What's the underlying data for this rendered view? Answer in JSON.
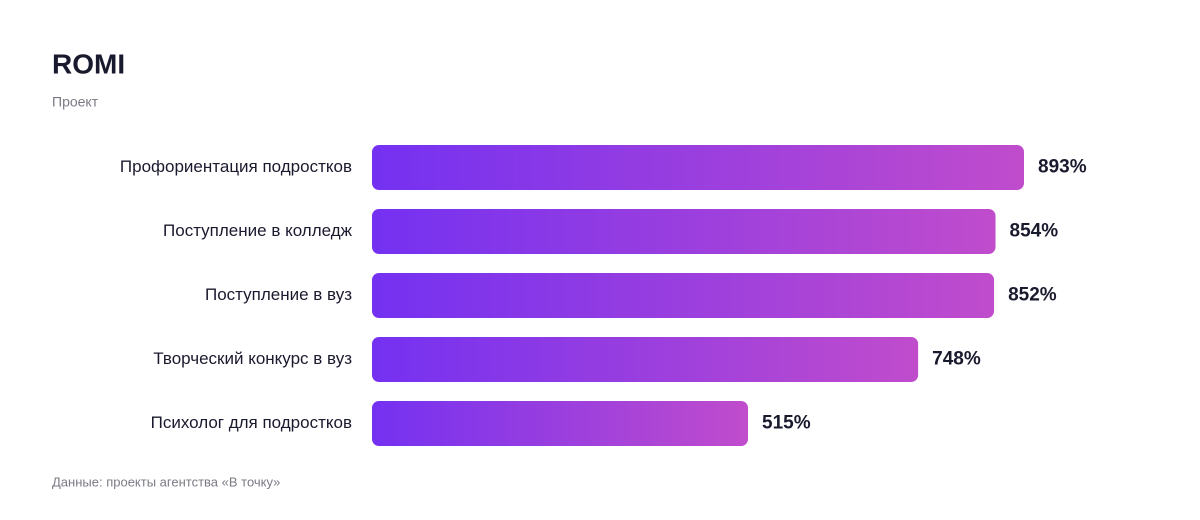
{
  "chart_data": {
    "type": "bar",
    "orientation": "horizontal",
    "title": "ROMI",
    "subtitle": "Проект",
    "categories": [
      "Профориентация подростков",
      "Поступление в колледж",
      "Поступление в вуз",
      "Творческий конкурс в вуз",
      "Психолог для подростков"
    ],
    "values": [
      893,
      854,
      852,
      748,
      515
    ],
    "value_labels": [
      "893%",
      "854%",
      "852%",
      "748%",
      "515%"
    ],
    "colors": [
      "#7431f1",
      "#c04ccc"
    ],
    "source": "Данные: проекты агентства «В точку»"
  }
}
